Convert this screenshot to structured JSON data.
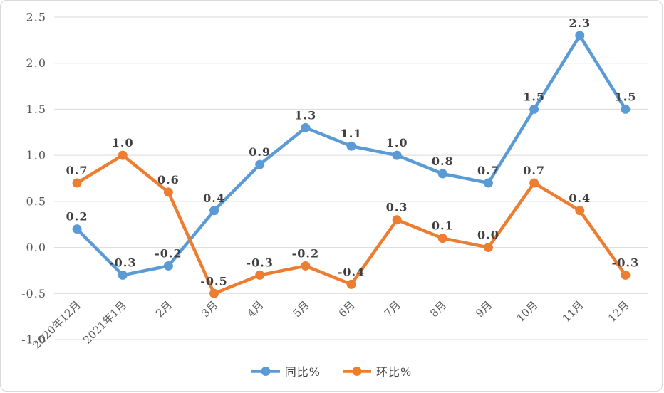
{
  "chart_data": {
    "type": "line",
    "title": "",
    "xlabel": "",
    "ylabel": "",
    "categories": [
      "2020年12月",
      "2021年1月",
      "2月",
      "3月",
      "4月",
      "5月",
      "6月",
      "7月",
      "8月",
      "9月",
      "10月",
      "11月",
      "12月"
    ],
    "series": [
      {
        "name": "同比%",
        "color": "#5B9BD5",
        "values": [
          0.2,
          -0.3,
          -0.2,
          0.4,
          0.9,
          1.3,
          1.1,
          1.0,
          0.8,
          0.7,
          1.5,
          2.3,
          1.5
        ]
      },
      {
        "name": "环比%",
        "color": "#ED7D31",
        "values": [
          0.7,
          1.0,
          0.6,
          -0.5,
          -0.3,
          -0.2,
          -0.4,
          0.3,
          0.1,
          0.0,
          0.7,
          0.4,
          -0.3
        ]
      }
    ],
    "y_ticks": [
      2.5,
      2.0,
      1.5,
      1.0,
      0.5,
      0.0,
      -0.5,
      -1.0
    ],
    "y_tick_labels": [
      "2.5",
      "2.0",
      "1.5",
      "1.0",
      "0.5",
      "0.0",
      "-0.5",
      "-1.0"
    ],
    "ylim": [
      -1.0,
      2.5
    ],
    "grid": true,
    "data_labels": true,
    "legend_position": "bottom"
  },
  "colors": {
    "background": "#FFFFFF",
    "chart_border": "#D9D9D9",
    "gridline": "#D9D9D9",
    "tick_label": "#595959",
    "data_label": "#3F3F3F"
  }
}
